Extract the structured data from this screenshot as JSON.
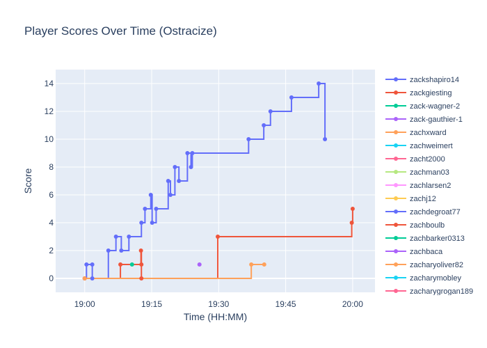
{
  "chart_data": {
    "type": "line",
    "title": "Player Scores Over Time (Ostracize)",
    "xlabel": "Time (HH:MM)",
    "ylabel": "Score",
    "x_unit": "minutes after 19:00",
    "xlim": [
      -6.5,
      65
    ],
    "ylim": [
      -1,
      15
    ],
    "x_ticks": [
      {
        "value": 0,
        "label": "19:00"
      },
      {
        "value": 15,
        "label": "19:15"
      },
      {
        "value": 30,
        "label": "19:30"
      },
      {
        "value": 45,
        "label": "19:45"
      },
      {
        "value": 60,
        "label": "20:00"
      }
    ],
    "y_ticks": [
      0,
      2,
      4,
      6,
      8,
      10,
      12,
      14
    ],
    "grid": true,
    "legend_position": "right",
    "line_shape": "step",
    "series": [
      {
        "name": "zackshapiro14",
        "color": "#636efa",
        "points": [
          [
            0.0,
            0
          ],
          [
            0.4,
            1
          ],
          [
            1.7,
            1
          ],
          [
            1.7,
            0
          ],
          [
            5.3,
            2
          ],
          [
            7.0,
            3
          ],
          [
            8.2,
            2
          ],
          [
            9.9,
            3
          ],
          [
            12.7,
            4
          ],
          [
            13.5,
            5
          ],
          [
            14.8,
            6
          ],
          [
            15.1,
            4
          ],
          [
            16.0,
            5
          ],
          [
            18.7,
            7
          ],
          [
            19.2,
            6
          ],
          [
            20.2,
            8
          ],
          [
            21.1,
            7
          ],
          [
            23.0,
            9
          ],
          [
            23.8,
            8
          ],
          [
            24.1,
            9
          ],
          [
            36.7,
            10
          ],
          [
            40.1,
            11
          ],
          [
            41.6,
            12
          ],
          [
            46.3,
            13
          ],
          [
            52.4,
            14
          ],
          [
            53.8,
            10
          ]
        ]
      },
      {
        "name": "zackgiesting",
        "color": "#ef553b",
        "points": [
          [
            0.0,
            0
          ],
          [
            8.0,
            1
          ],
          [
            12.6,
            2
          ],
          [
            12.7,
            1
          ],
          [
            12.7,
            0
          ],
          [
            29.8,
            3
          ],
          [
            59.8,
            4
          ],
          [
            60.0,
            5
          ]
        ]
      },
      {
        "name": "zack-wagner-2",
        "color": "#00cc96",
        "points": [
          [
            10.6,
            1
          ]
        ]
      },
      {
        "name": "zack-gauthier-1",
        "color": "#ab63fa",
        "points": [
          [
            25.7,
            1
          ]
        ]
      },
      {
        "name": "zachxward",
        "color": "#ffa15a",
        "points": [
          [
            0.0,
            0
          ],
          [
            37.3,
            1
          ],
          [
            40.2,
            1
          ]
        ]
      },
      {
        "name": "zachweimert",
        "color": "#19d3f3",
        "points": []
      },
      {
        "name": "zacht2000",
        "color": "#ff6692",
        "points": []
      },
      {
        "name": "zachman03",
        "color": "#b6e880",
        "points": []
      },
      {
        "name": "zachlarsen2",
        "color": "#ff97ff",
        "points": []
      },
      {
        "name": "zachj12",
        "color": "#fecb52",
        "points": []
      },
      {
        "name": "zachdegroat77",
        "color": "#636efa",
        "points": []
      },
      {
        "name": "zachboulb",
        "color": "#ef553b",
        "points": []
      },
      {
        "name": "zachbarker0313",
        "color": "#00cc96",
        "points": []
      },
      {
        "name": "zachbaca",
        "color": "#ab63fa",
        "points": []
      },
      {
        "name": "zacharyoliver82",
        "color": "#ffa15a",
        "points": []
      },
      {
        "name": "zacharymobley",
        "color": "#19d3f3",
        "points": []
      },
      {
        "name": "zacharygrogan189",
        "color": "#ff6692",
        "points": []
      }
    ]
  }
}
